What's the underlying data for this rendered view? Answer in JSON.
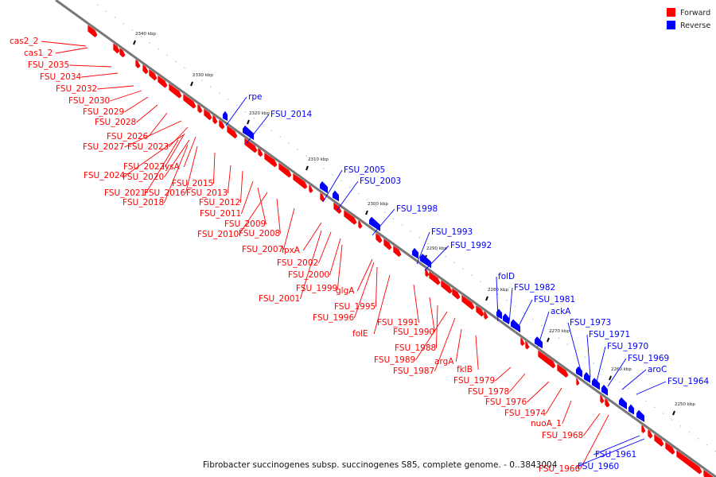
{
  "caption": "Fibrobacter succinogenes subsp. succinogenes S85, complete genome. - 0..3843004",
  "legend": [
    {
      "label": "Forward",
      "color": "#ff0000"
    },
    {
      "label": "Reverse",
      "color": "#0000ff"
    }
  ],
  "colors": {
    "forward": "#ff0000",
    "reverse": "#0000ff",
    "backbone": "#777777",
    "label_line_forward": "#ff0000",
    "label_line_reverse": "#0000ff"
  },
  "ticks": [
    "2340 kbp",
    "2330 kbp",
    "2320 kbp",
    "2310 kbp",
    "2300 kbp",
    "2290 kbp",
    "2280 kbp",
    "2270 kbp",
    "2260 kbp",
    "2250 kbp"
  ],
  "genes_forward": [
    "cas2_2",
    "cas1_2",
    "FSU_2035",
    "FSU_2034",
    "FSU_2032",
    "FSU_2030",
    "FSU_2029",
    "FSU_2028",
    "FSU_2026",
    "FSU_2027",
    "FSU_2023",
    "FSU_2022",
    "lysA",
    "FSU_2020",
    "FSU_2024",
    "FSU_2015",
    "FSU_2021",
    "FSU_2016",
    "FSU_2013",
    "FSU_2018",
    "FSU_2012",
    "FSU_2011",
    "FSU_2009",
    "FSU_2010",
    "FSU_2008",
    "FSU_2007",
    "lpxA",
    "FSU_2002",
    "FSU_2000",
    "FSU_1999",
    "glgA",
    "FSU_2001",
    "FSU_1995",
    "FSU_1996",
    "FSU_1991",
    "folE",
    "FSU_1990",
    "FSU_1988",
    "FSU_1989",
    "argA",
    "FSU_1987",
    "fklB",
    "FSU_1979",
    "FSU_1978",
    "FSU_1976",
    "FSU_1974",
    "nuoA_1",
    "FSU_1968",
    "FSU_1966"
  ],
  "genes_reverse": [
    "rpe",
    "FSU_2014",
    "FSU_2005",
    "FSU_2003",
    "FSU_1998",
    "FSU_1993",
    "FSU_1992",
    "folD",
    "FSU_1982",
    "FSU_1981",
    "ackA",
    "FSU_1973",
    "FSU_1971",
    "FSU_1970",
    "FSU_1969",
    "aroC",
    "FSU_1964",
    "FSU_1961",
    "FSU_1960"
  ]
}
